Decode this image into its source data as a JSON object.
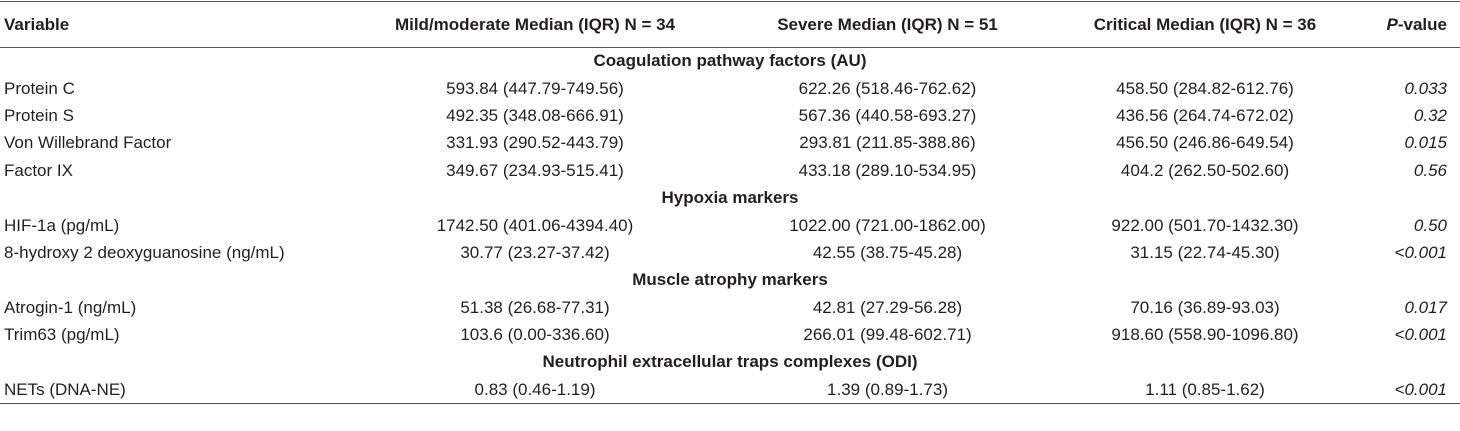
{
  "table": {
    "header": [
      "Variable",
      "Mild/moderate Median (IQR) N = 34",
      "Severe Median (IQR) N = 51",
      "Critical Median (IQR) N = 36",
      {
        "italic": "P",
        "rest": "-value"
      }
    ],
    "sections": [
      {
        "title": "Coagulation pathway factors (AU)",
        "rows": [
          [
            "Protein C",
            "593.84 (447.79-749.56)",
            "622.26 (518.46-762.62)",
            "458.50 (284.82-612.76)",
            "0.033"
          ],
          [
            "Protein S",
            "492.35 (348.08-666.91)",
            "567.36 (440.58-693.27)",
            "436.56 (264.74-672.02)",
            "0.32"
          ],
          [
            "Von Willebrand Factor",
            "331.93 (290.52-443.79)",
            "293.81 (211.85-388.86)",
            "456.50 (246.86-649.54)",
            "0.015"
          ],
          [
            "Factor IX",
            "349.67 (234.93-515.41)",
            "433.18 (289.10-534.95)",
            "404.2 (262.50-502.60)",
            "0.56"
          ]
        ]
      },
      {
        "title": "Hypoxia markers",
        "rows": [
          [
            "HIF-1a (pg/mL)",
            "1742.50 (401.06-4394.40)",
            "1022.00 (721.00-1862.00)",
            "922.00 (501.70-1432.30)",
            "0.50"
          ],
          [
            "8-hydroxy 2 deoxyguanosine (ng/mL)",
            "30.77 (23.27-37.42)",
            "42.55 (38.75-45.28)",
            "31.15 (22.74-45.30)",
            "<0.001"
          ]
        ]
      },
      {
        "title": "Muscle atrophy markers",
        "rows": [
          [
            "Atrogin-1 (ng/mL)",
            "51.38 (26.68-77.31)",
            "42.81 (27.29-56.28)",
            "70.16 (36.89-93.03)",
            "0.017"
          ],
          [
            "Trim63 (pg/mL)",
            "103.6 (0.00-336.60)",
            "266.01 (99.48-602.71)",
            "918.60 (558.90-1096.80)",
            "<0.001"
          ]
        ]
      },
      {
        "title": "Neutrophil extracellular traps complexes (ODI)",
        "rows": [
          [
            "NETs (DNA-NE)",
            "0.83 (0.46-1.19)",
            "1.39 (0.89-1.73)",
            "1.11 (0.85-1.62)",
            "<0.001"
          ]
        ]
      }
    ]
  }
}
